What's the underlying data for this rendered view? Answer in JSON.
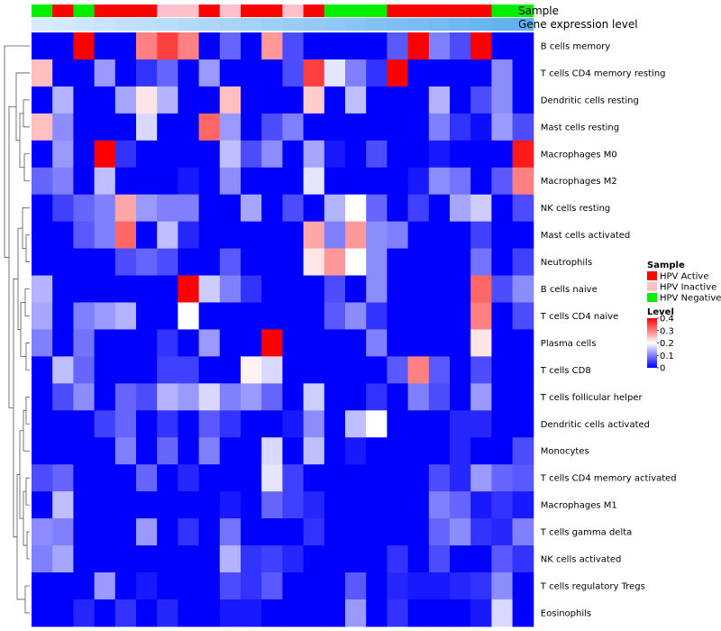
{
  "chart_data": {
    "type": "heatmap",
    "title": "",
    "annotation_tracks": [
      "Sample",
      "Gene expression level"
    ],
    "columns": 24,
    "sample_groups": [
      "Negative",
      "Active",
      "Negative",
      "Active",
      "Active",
      "Active",
      "Inactive",
      "Inactive",
      "Active",
      "Inactive",
      "Active",
      "Active",
      "Inactive",
      "Active",
      "Negative",
      "Negative",
      "Negative",
      "Active",
      "Active",
      "Active",
      "Active",
      "Active",
      "Negative",
      "Negative"
    ],
    "gene_expression_level": [
      0.05,
      0.08,
      0.12,
      0.16,
      0.2,
      0.24,
      0.28,
      0.32,
      0.36,
      0.4,
      0.44,
      0.48,
      0.52,
      0.56,
      0.6,
      0.64,
      0.68,
      0.72,
      0.76,
      0.8,
      0.84,
      0.88,
      0.92,
      0.96
    ],
    "rows": [
      "B cells memory",
      "T cells CD4 memory resting",
      "Dendritic cells resting",
      "Mast cells resting",
      "Macrophages M0",
      "Macrophages M2",
      "NK cells resting",
      "Mast cells activated",
      "Neutrophils",
      "B cells naive",
      "T cells CD4 naive",
      "Plasma cells",
      "T cells CD8",
      "T cells follicular helper",
      "Dendritic cells activated",
      "Monocytes",
      "T cells CD4 memory activated",
      "Macrophages M1",
      "T cells gamma delta",
      "NK cells activated",
      "T cells regulatory  Tregs",
      "Eosinophils"
    ],
    "values": [
      [
        0,
        0,
        0.4,
        0,
        0,
        0.3,
        0.35,
        0.3,
        0,
        0.08,
        0,
        0.28,
        0.06,
        0,
        0,
        0,
        0,
        0.07,
        0.4,
        0.1,
        0.06,
        0.4,
        0,
        0
      ],
      [
        0.25,
        0,
        0,
        0.12,
        0,
        0.04,
        0.08,
        0,
        0.12,
        0,
        0,
        0,
        0.06,
        0.35,
        0.18,
        0.1,
        0.04,
        0.4,
        0,
        0,
        0,
        0,
        0.11,
        0
      ],
      [
        0,
        0.14,
        0,
        0,
        0.13,
        0.22,
        0.14,
        0,
        0,
        0.25,
        0,
        0,
        0,
        0.24,
        0,
        0.15,
        0,
        0,
        0,
        0.14,
        0,
        0.06,
        0.11,
        0
      ],
      [
        0.25,
        0.11,
        0,
        0,
        0,
        0.17,
        0,
        0,
        0.32,
        0.12,
        0,
        0.06,
        0.1,
        0,
        0,
        0,
        0,
        0,
        0,
        0.1,
        0.04,
        0.01,
        0.12,
        0.06
      ],
      [
        0,
        0.12,
        0,
        0.4,
        0.04,
        0,
        0,
        0,
        0,
        0.15,
        0.06,
        0.11,
        0,
        0.13,
        0.02,
        0,
        0.06,
        0,
        0,
        0.02,
        0,
        0,
        0,
        0.38
      ],
      [
        0.08,
        0.1,
        0,
        0.15,
        0,
        0,
        0,
        0.02,
        0,
        0.11,
        0,
        0,
        0,
        0.18,
        0,
        0,
        0,
        0,
        0.02,
        0.11,
        0.09,
        0,
        0.07,
        0.3
      ],
      [
        0,
        0.05,
        0.08,
        0.1,
        0.27,
        0.12,
        0.1,
        0.1,
        0,
        0,
        0.13,
        0,
        0.06,
        0,
        0.14,
        0.2,
        0.08,
        0,
        0.05,
        0,
        0.13,
        0.16,
        0,
        0.06
      ],
      [
        0,
        0,
        0.07,
        0.1,
        0.32,
        0,
        0.15,
        0.03,
        0,
        0,
        0,
        0,
        0,
        0.27,
        0.1,
        0.28,
        0.11,
        0.1,
        0,
        0,
        0,
        0.05,
        0,
        0
      ],
      [
        0,
        0,
        0,
        0,
        0.06,
        0.08,
        0.06,
        0,
        0,
        0.07,
        0,
        0,
        0,
        0.22,
        0.28,
        0.2,
        0.11,
        0,
        0,
        0,
        0,
        0.09,
        0,
        0.05
      ],
      [
        0.14,
        0,
        0,
        0,
        0,
        0,
        0,
        0.4,
        0.16,
        0.1,
        0.04,
        0,
        0,
        0,
        0.06,
        0,
        0.11,
        0,
        0,
        0,
        0,
        0.32,
        0.06,
        0.11
      ],
      [
        0.13,
        0,
        0.1,
        0.12,
        0.14,
        0,
        0,
        0.2,
        0,
        0,
        0,
        0,
        0,
        0,
        0.07,
        0.11,
        0.04,
        0,
        0,
        0,
        0,
        0.3,
        0,
        0.06
      ],
      [
        0.1,
        0,
        0.09,
        0,
        0,
        0,
        0.04,
        0,
        0.12,
        0,
        0,
        0.4,
        0,
        0,
        0,
        0,
        0.1,
        0,
        0,
        0,
        0,
        0.22,
        0,
        0
      ],
      [
        0,
        0.15,
        0.08,
        0,
        0,
        0,
        0.05,
        0.05,
        0,
        0,
        0.21,
        0.17,
        0,
        0,
        0,
        0,
        0,
        0.07,
        0.3,
        0.07,
        0,
        0.06,
        0,
        0
      ],
      [
        0,
        0.06,
        0.11,
        0,
        0.08,
        0.06,
        0.14,
        0.12,
        0.17,
        0.1,
        0.12,
        0.08,
        0,
        0.16,
        0,
        0,
        0.04,
        0,
        0.1,
        0.06,
        0,
        0.12,
        0,
        0
      ],
      [
        0,
        0,
        0,
        0.05,
        0.08,
        0,
        0.04,
        0,
        0.07,
        0.04,
        0,
        0,
        0.02,
        0.11,
        0,
        0.15,
        0.2,
        0,
        0,
        0,
        0.03,
        0.03,
        0,
        0
      ],
      [
        0,
        0,
        0,
        0,
        0.1,
        0,
        0.08,
        0,
        0.1,
        0,
        0,
        0.17,
        0,
        0.15,
        0,
        0.02,
        0,
        0,
        0,
        0,
        0.03,
        0,
        0,
        0.06
      ],
      [
        0.06,
        0.08,
        0,
        0,
        0,
        0.08,
        0,
        0.03,
        0,
        0,
        0,
        0.18,
        0.05,
        0,
        0,
        0,
        0,
        0,
        0,
        0.06,
        0.03,
        0.12,
        0.08,
        0.07
      ],
      [
        0,
        0.15,
        0,
        0,
        0,
        0,
        0,
        0,
        0,
        0.02,
        0,
        0.08,
        0.05,
        0.03,
        0,
        0,
        0,
        0,
        0,
        0.1,
        0.08,
        0.02,
        0.04,
        0.02
      ],
      [
        0.11,
        0.1,
        0,
        0,
        0,
        0.12,
        0,
        0.04,
        0,
        0.09,
        0,
        0,
        0,
        0.04,
        0,
        0,
        0,
        0,
        0,
        0.08,
        0.11,
        0.04,
        0.03,
        0.1
      ],
      [
        0.1,
        0.13,
        0,
        0,
        0,
        0,
        0,
        0,
        0,
        0.14,
        0.04,
        0.05,
        0.03,
        0,
        0,
        0,
        0,
        0.04,
        0,
        0.06,
        0,
        0,
        0.07,
        0.04
      ],
      [
        0,
        0,
        0,
        0.12,
        0,
        0.02,
        0,
        0,
        0,
        0.06,
        0.04,
        0.07,
        0,
        0,
        0,
        0.07,
        0,
        0.03,
        0.02,
        0.02,
        0.03,
        0.04,
        0.11,
        0
      ],
      [
        0,
        0,
        0.03,
        0,
        0.04,
        0,
        0.03,
        0,
        0,
        0.02,
        0.02,
        0,
        0,
        0,
        0,
        0.12,
        0,
        0.04,
        0,
        0,
        0,
        0.02,
        0.17,
        0
      ]
    ],
    "legend": {
      "sample_title": "Sample",
      "sample_entries": [
        {
          "label": "HPV Active",
          "color": "#ff0000"
        },
        {
          "label": "HPV Inactive",
          "color": "#ffc0cb"
        },
        {
          "label": "HPV Negative",
          "color": "#00ee00"
        }
      ],
      "level_title": "Level",
      "level_ticks": [
        "0.4",
        "0.3",
        "0.2",
        "0.1",
        "0"
      ],
      "range": [
        0,
        0.4
      ],
      "colors": {
        "low": "#0000ff",
        "mid": "#ffffff",
        "high": "#ff0000"
      }
    },
    "group_colors": {
      "Active": "#ff0000",
      "Inactive": "#ffc0cb",
      "Negative": "#00ee00"
    },
    "expr_colors": {
      "low": "#ddeeff",
      "high": "#5aaeee"
    }
  }
}
